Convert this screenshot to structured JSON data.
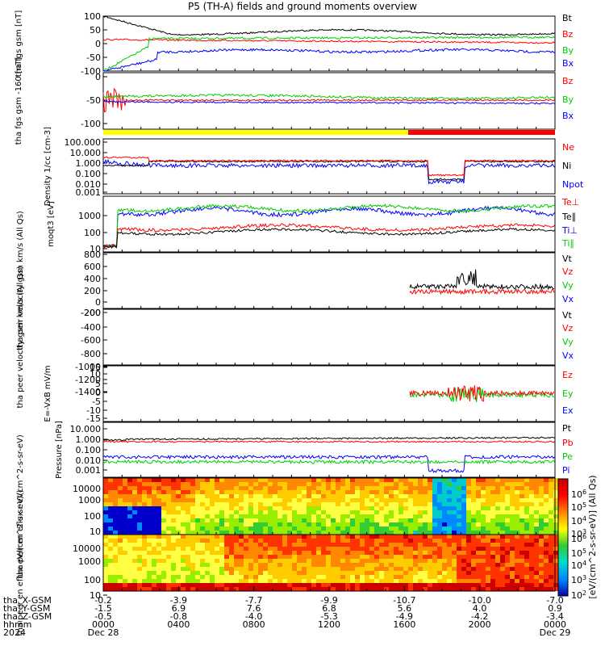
{
  "title": "P5 (TH-A) fields and ground moments overview",
  "colors": {
    "black": "#000000",
    "red": "#ff0000",
    "green": "#00cc00",
    "blue": "#0000ff",
    "yellow": "#ffff00"
  },
  "chart_data": [
    {
      "type": "line",
      "panel": "fgs_gsm",
      "ylabel": "tha fgs gsm [nT]",
      "ylim": [
        -100,
        100
      ],
      "yticks": [
        "100",
        "50",
        "0",
        "-50",
        "-100"
      ],
      "series": [
        {
          "name": "Bt",
          "color": "#000000"
        },
        {
          "name": "Bz",
          "color": "#ff0000"
        },
        {
          "name": "By",
          "color": "#00cc00"
        },
        {
          "name": "Bx",
          "color": "#0000ff"
        }
      ]
    },
    {
      "type": "line",
      "panel": "fgs_gsm_clip",
      "ylabel": "tha fgs gsm -160 [nT]",
      "ylim": [
        -120,
        20
      ],
      "yticks": [
        "0",
        "-50",
        "-100"
      ],
      "series": [
        {
          "name": "Bz",
          "color": "#ff0000"
        },
        {
          "name": "By",
          "color": "#00cc00"
        },
        {
          "name": "Bx",
          "color": "#0000ff"
        }
      ]
    },
    {
      "type": "line",
      "panel": "density",
      "ylabel": "Density 1/cc [cm-3]",
      "yticks": [
        "100.000",
        "10.000",
        "1.000",
        "0.100",
        "0.010",
        "0.001"
      ],
      "series": [
        {
          "name": "Ne",
          "color": "#ff0000"
        },
        {
          "name": "Ni",
          "color": "#000000"
        },
        {
          "name": "Npot",
          "color": "#0000ff"
        }
      ]
    },
    {
      "type": "line",
      "panel": "temperature",
      "ylabel": "moqt3 [eV]",
      "yticks": [
        "1000",
        "100",
        "10"
      ],
      "series": [
        {
          "name": "Te⊥",
          "color": "#ff0000"
        },
        {
          "name": "Te∥",
          "color": "#000000"
        },
        {
          "name": "Ti⊥",
          "color": "#0000ff"
        },
        {
          "name": "Ti∥",
          "color": "#00cc00"
        }
      ]
    },
    {
      "type": "line",
      "panel": "peir_velocity",
      "ylabel": "tha peir velocity gsm km/s (All Qs)",
      "ylim": [
        -250,
        820
      ],
      "yticks": [
        "800",
        "600",
        "400",
        "200",
        "0",
        "-200"
      ],
      "series": [
        {
          "name": "Vt",
          "color": "#000000"
        },
        {
          "name": "Vz",
          "color": "#ff0000"
        },
        {
          "name": "Vy",
          "color": "#00cc00"
        },
        {
          "name": "Vx",
          "color": "#0000ff"
        }
      ]
    },
    {
      "type": "line",
      "panel": "peer_velocity",
      "ylabel": "tha peer velocity gsm km/s (All Qs)",
      "yticks": [
        "-200",
        "-400",
        "-600",
        "-800",
        "-1000",
        "-1200",
        "-1400"
      ],
      "series": [
        {
          "name": "Vt",
          "color": "#000000"
        },
        {
          "name": "Vz",
          "color": "#ff0000"
        },
        {
          "name": "Vy",
          "color": "#00cc00"
        },
        {
          "name": "Vx",
          "color": "#0000ff"
        }
      ]
    },
    {
      "type": "line",
      "panel": "efield",
      "ylabel": "E=-VxB mV/m",
      "ylim": [
        -17,
        17
      ],
      "yticks": [
        "15",
        "10",
        "5",
        "0",
        "-5",
        "-10",
        "-15"
      ],
      "series": [
        {
          "name": "Ez",
          "color": "#ff0000"
        },
        {
          "name": "Ey",
          "color": "#00cc00"
        },
        {
          "name": "Ex",
          "color": "#0000ff"
        }
      ]
    },
    {
      "type": "line",
      "panel": "pressure",
      "ylabel": "Pressure [nPa]",
      "yticks": [
        "10.000",
        "1.000",
        "0.100",
        "0.010",
        "0.001"
      ],
      "series": [
        {
          "name": "Pt",
          "color": "#000000"
        },
        {
          "name": "Pb",
          "color": "#ff0000"
        },
        {
          "name": "Pe",
          "color": "#00cc00"
        },
        {
          "name": "Pi",
          "color": "#0000ff"
        }
      ]
    },
    {
      "type": "heatmap",
      "panel": "peir_spectrogram",
      "ylabel": "tha peir en eflux eV/(cm^2-s-sr-eV)",
      "yticks": [
        "10000",
        "1000",
        "100",
        "10"
      ]
    },
    {
      "type": "heatmap",
      "panel": "peer_spectrogram",
      "ylabel": "tha peer en eflux eV/(cm^2-s-sr-eV)",
      "yticks": [
        "10000",
        "1000",
        "100",
        "10"
      ]
    }
  ],
  "colorbar": {
    "ticks": [
      "10^6",
      "10^5",
      "10^4",
      "10^3",
      "10^6",
      "10^5",
      "10^4",
      "10^3",
      "10^2"
    ],
    "label": "[eV/(cm^2-s-sr-eV)] (All Qs)"
  },
  "xaxis": {
    "row_labels": [
      "tha_X-GSM",
      "tha_Y-GSM",
      "tha_Z-GSM",
      "hhmm",
      "2024"
    ],
    "ticks": [
      {
        "x": "-0.2",
        "y": "-1.5",
        "z": "-0.5",
        "hhmm": "0000",
        "date": "Dec 28"
      },
      {
        "x": "-3.9",
        "y": "6.9",
        "z": "-0.8",
        "hhmm": "0400",
        "date": ""
      },
      {
        "x": "-7.7",
        "y": "7.6",
        "z": "-4.0",
        "hhmm": "0800",
        "date": ""
      },
      {
        "x": "-9.9",
        "y": "6.8",
        "z": "-5.3",
        "hhmm": "1200",
        "date": ""
      },
      {
        "x": "-10.7",
        "y": "5.6",
        "z": "-4.9",
        "hhmm": "1600",
        "date": ""
      },
      {
        "x": "-10.0",
        "y": "4.0",
        "z": "-4.2",
        "hhmm": "2000",
        "date": ""
      },
      {
        "x": "-7.0",
        "y": "0.9",
        "z": "-3.4",
        "hhmm": "0000",
        "date": "Dec 29"
      }
    ]
  }
}
